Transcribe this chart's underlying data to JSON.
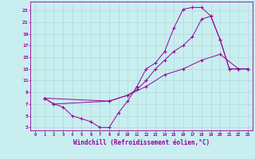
{
  "xlabel": "Windchill (Refroidissement éolien,°C)",
  "bg_color": "#c8eef0",
  "line_color": "#990099",
  "grid_color": "#b0d8da",
  "xlim": [
    -0.5,
    23.5
  ],
  "ylim": [
    2.5,
    24.5
  ],
  "xticks": [
    0,
    1,
    2,
    3,
    4,
    5,
    6,
    7,
    8,
    9,
    10,
    11,
    12,
    13,
    14,
    15,
    16,
    17,
    18,
    19,
    20,
    21,
    22,
    23
  ],
  "yticks": [
    3,
    5,
    7,
    9,
    11,
    13,
    15,
    17,
    19,
    21,
    23
  ],
  "line1_x": [
    1,
    2,
    3,
    4,
    5,
    6,
    7,
    8,
    9,
    10,
    11,
    12,
    13,
    14,
    15,
    16,
    17,
    18,
    19,
    20,
    21,
    22,
    23
  ],
  "line1_y": [
    8,
    7,
    6.5,
    5,
    4.5,
    4,
    3,
    3,
    5.5,
    7.5,
    10,
    13,
    14,
    16,
    20,
    23.2,
    23.5,
    23.5,
    22,
    18,
    13,
    13,
    13
  ],
  "line2_x": [
    1,
    2,
    8,
    10,
    11,
    12,
    13,
    14,
    15,
    16,
    17,
    18,
    19,
    20,
    21,
    22,
    23
  ],
  "line2_y": [
    8,
    7,
    7.5,
    8.5,
    9.5,
    11,
    13,
    14.5,
    16,
    17,
    18.5,
    21.5,
    22,
    18,
    13,
    13,
    13
  ],
  "line3_x": [
    1,
    8,
    10,
    12,
    14,
    16,
    18,
    20,
    22,
    23
  ],
  "line3_y": [
    8,
    7.5,
    8.5,
    10,
    12,
    13,
    14.5,
    15.5,
    13,
    13
  ]
}
